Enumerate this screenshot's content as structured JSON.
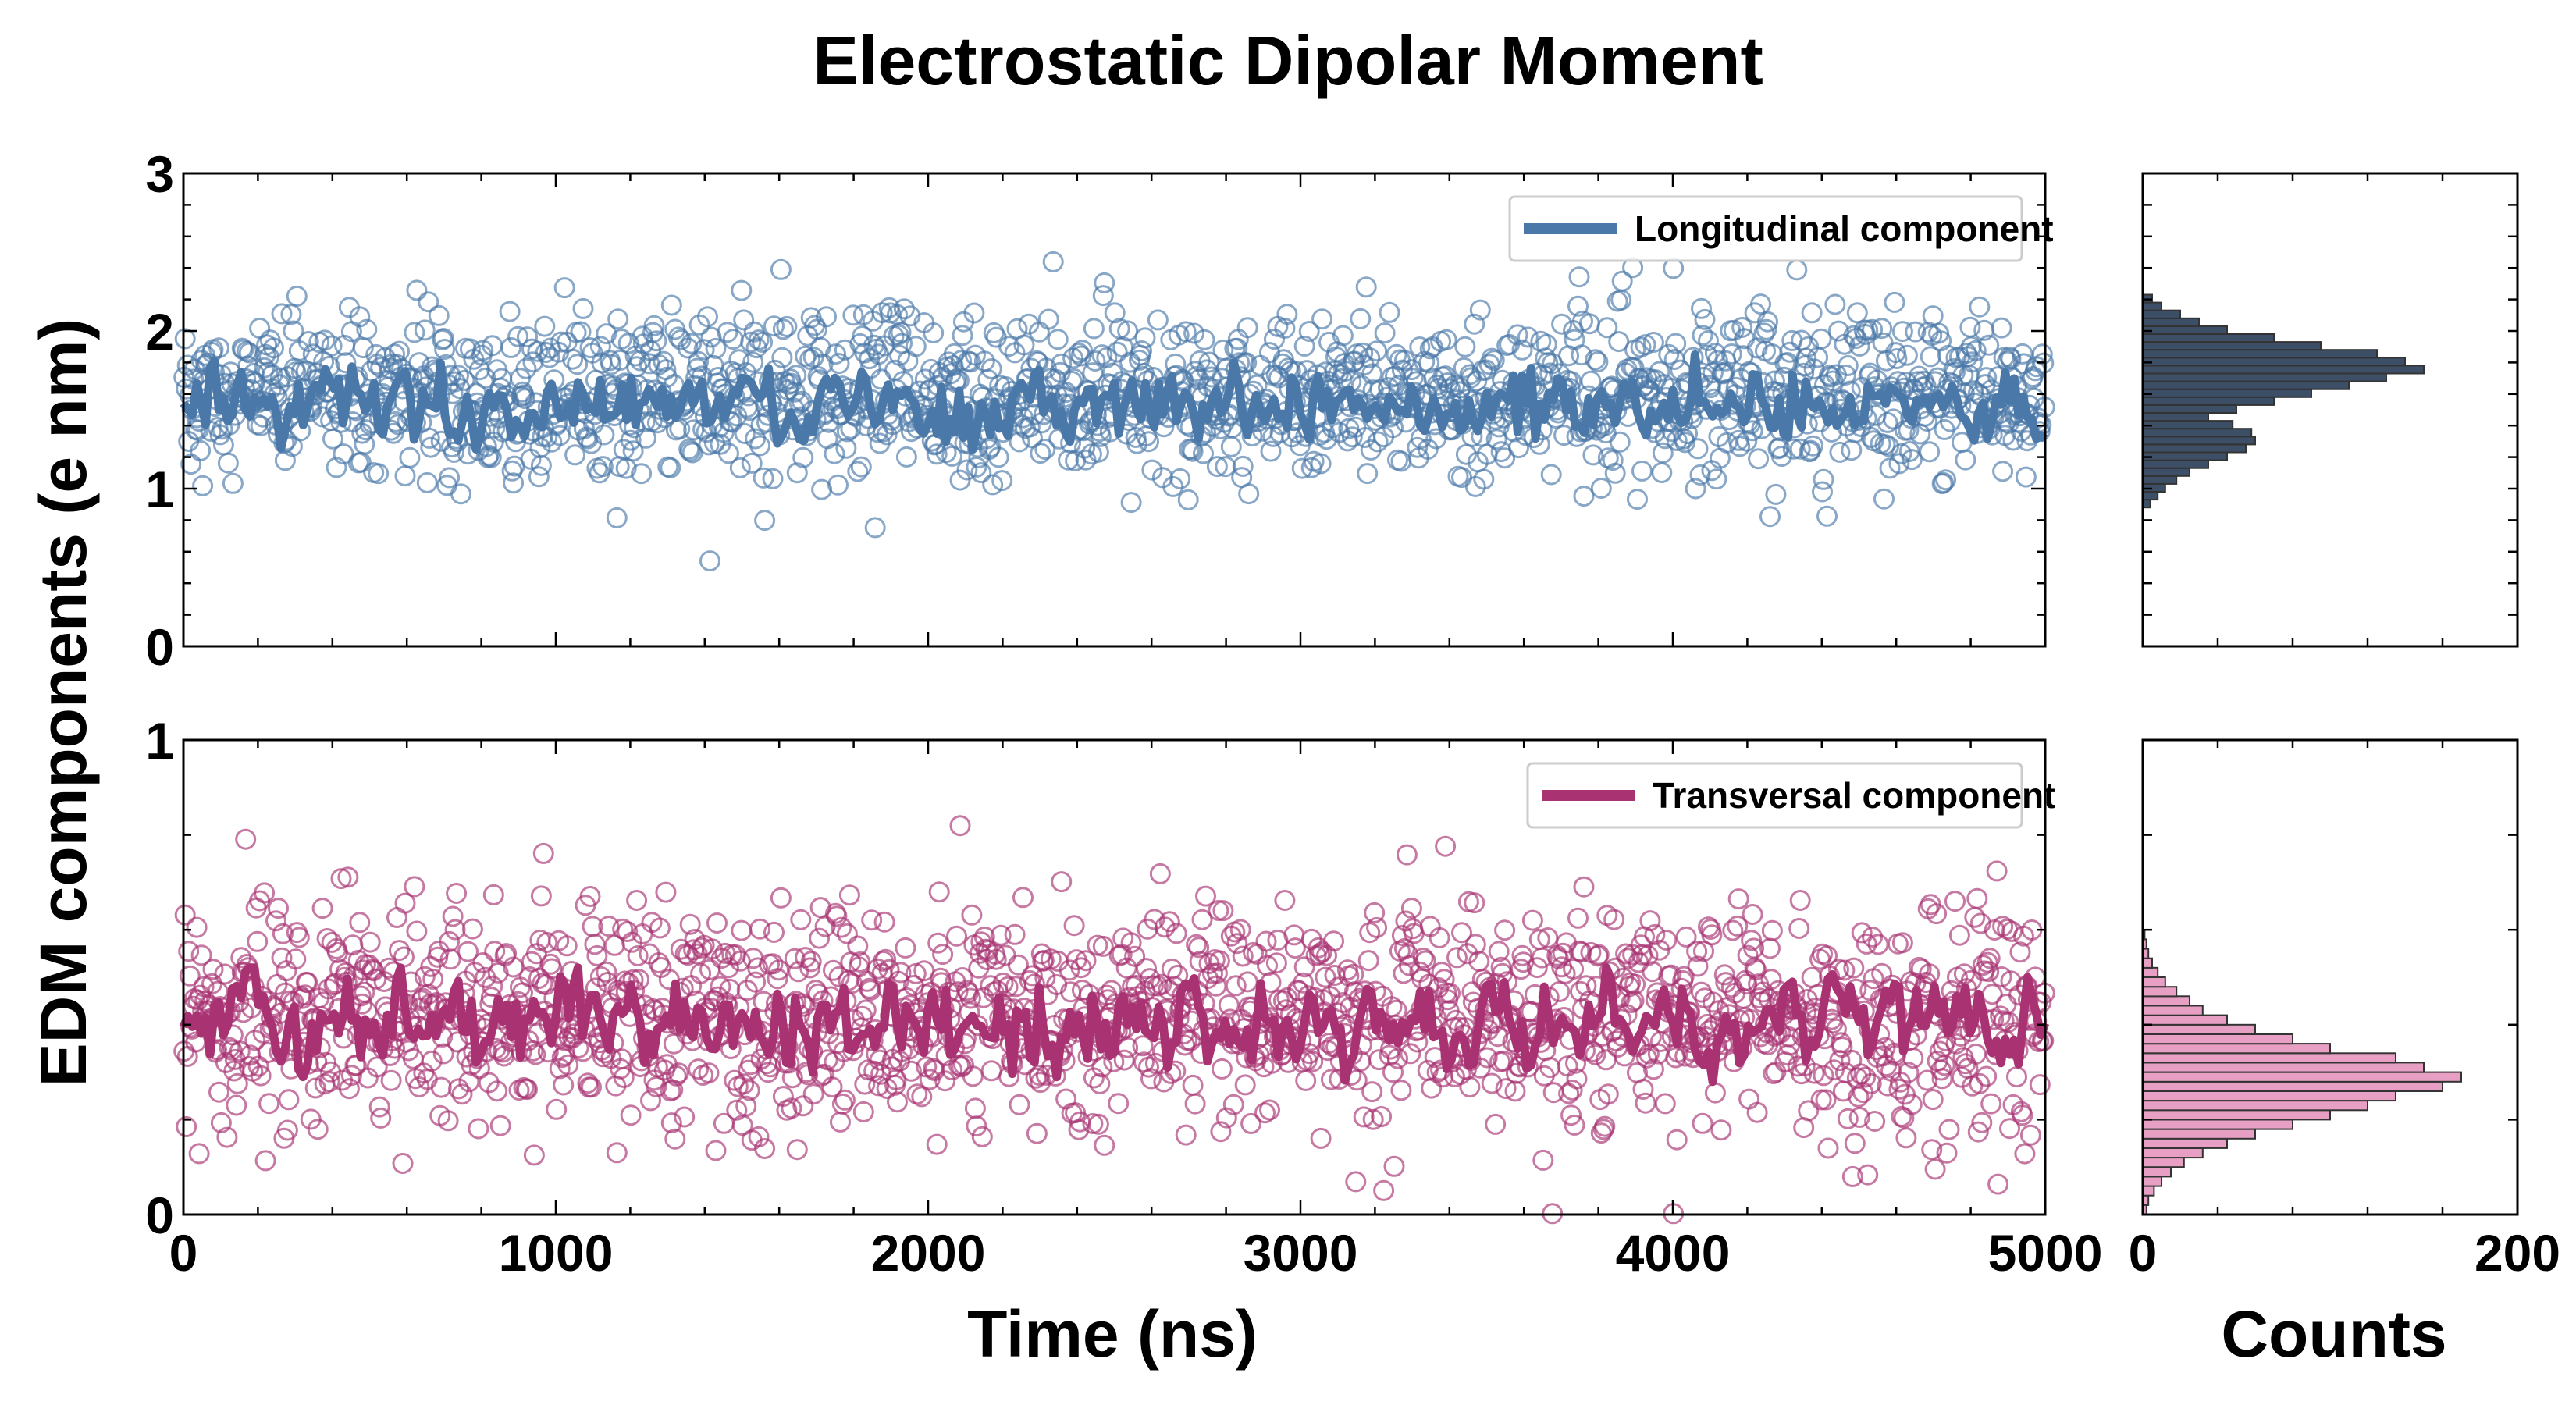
{
  "chart_data": {
    "title": "Electrostatic Dipolar Moment",
    "ylabel": "EDM components (e nm)",
    "xlabel": "Time (ns)",
    "hist_xlabel": "Counts",
    "colors": {
      "longitudinal": "#4a78a8",
      "transversal": "#a83272",
      "longitudinal_hist": "#3d4f66",
      "transversal_hist": "#e7a0c4",
      "hist_edge": "#333333"
    },
    "panels": [
      {
        "type": "scatter+line",
        "series_name": "Longitudinal component",
        "xlim": [
          0,
          5000
        ],
        "ylim": [
          0,
          3
        ],
        "xticks": [
          0,
          1000,
          2000,
          3000,
          4000,
          5000
        ],
        "yticks": [
          0,
          1,
          2,
          3
        ],
        "ytick_labels": [
          "0",
          "1",
          "2",
          "3"
        ],
        "n_points": 1600,
        "mean": 1.58,
        "spread": 0.26,
        "running_average_range": [
          1.25,
          1.85
        ],
        "legend_position": "top-right"
      },
      {
        "type": "scatter+line",
        "series_name": "Transversal component",
        "xlim": [
          0,
          5000
        ],
        "ylim": [
          0,
          1
        ],
        "xticks": [
          0,
          1000,
          2000,
          3000,
          4000,
          5000
        ],
        "xtick_labels": [
          "0",
          "1000",
          "2000",
          "3000",
          "4000",
          "5000"
        ],
        "yticks": [
          0,
          1
        ],
        "ytick_labels": [
          "0",
          "1"
        ],
        "n_points": 1600,
        "mean": 0.42,
        "spread": 0.12,
        "running_average_range": [
          0.28,
          0.52
        ],
        "legend_position": "top-right"
      }
    ],
    "histograms": [
      {
        "type": "histogram",
        "orientation": "horizontal",
        "series_name": "Longitudinal component",
        "xlim": [
          0,
          200
        ],
        "ylim": [
          0,
          3
        ],
        "bin_edges_start": 0.88,
        "bin_width": 0.05,
        "counts": [
          4,
          8,
          12,
          18,
          25,
          35,
          45,
          55,
          60,
          58,
          48,
          35,
          50,
          70,
          90,
          110,
          130,
          150,
          140,
          125,
          95,
          70,
          45,
          30,
          20,
          10,
          5
        ]
      },
      {
        "type": "histogram",
        "orientation": "horizontal",
        "series_name": "Transversal component",
        "xlim": [
          0,
          200
        ],
        "xticks": [
          0,
          200
        ],
        "xtick_labels": [
          "0",
          "200"
        ],
        "ylim": [
          0,
          1
        ],
        "bin_edges_start": 0.0,
        "bin_width": 0.02,
        "counts": [
          2,
          3,
          6,
          10,
          15,
          22,
          32,
          45,
          60,
          80,
          100,
          120,
          135,
          160,
          170,
          150,
          135,
          100,
          80,
          60,
          45,
          32,
          25,
          18,
          12,
          8,
          5,
          3,
          2,
          1
        ]
      }
    ]
  }
}
